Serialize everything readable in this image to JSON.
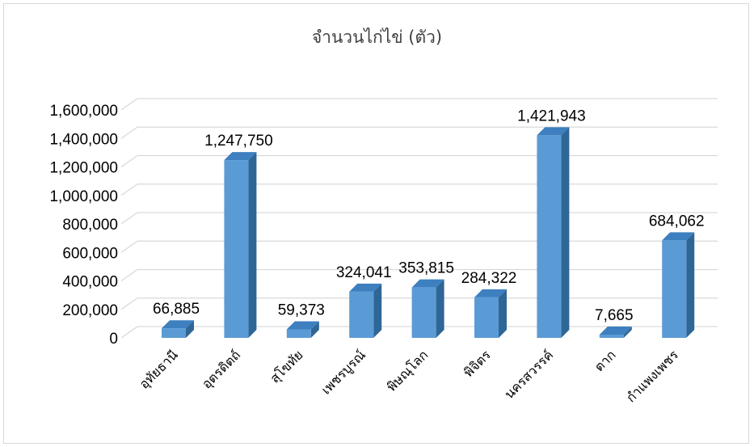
{
  "chart_data": {
    "type": "bar",
    "title": "จำนวนไก่ไข่ (ตัว)",
    "categories": [
      "อุทัยธานี",
      "อุตรดิตถ์",
      "สุโขทัย",
      "เพชรบูรณ์",
      "พิษณุโลก",
      "พิจิตร",
      "นครสวรรค์",
      "ตาก",
      "กำแพงเพชร"
    ],
    "values": [
      66885,
      1247750,
      59373,
      324041,
      353815,
      284322,
      1421943,
      7665,
      684062
    ],
    "value_labels": [
      "66,885",
      "1,247,750",
      "59,373",
      "324,041",
      "353,815",
      "284,322",
      "1,421,943",
      "7,665",
      "684,062"
    ],
    "y_ticks": [
      "0",
      "200,000",
      "400,000",
      "600,000",
      "800,000",
      "1,000,000",
      "1,200,000",
      "1,400,000",
      "1,600,000"
    ],
    "ylim": [
      0,
      1600000
    ],
    "grid": true,
    "legend": "none",
    "style": "3d-column"
  },
  "colors": {
    "bar_front": "#5b9bd5",
    "bar_side": "#2e6696",
    "bar_top": "#3d7fbf",
    "grid": "#d9d9d9"
  }
}
